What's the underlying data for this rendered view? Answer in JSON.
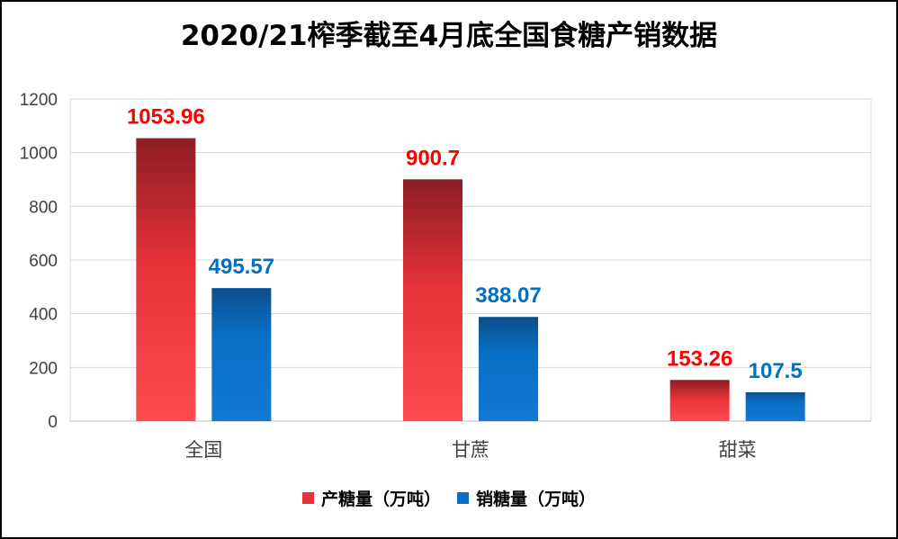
{
  "chart_data": {
    "type": "bar",
    "title": "2020/21榨季截至4月底全国食糖产销数据",
    "categories": [
      "全国",
      "甘蔗",
      "甜菜"
    ],
    "series": [
      {
        "name": "产糖量（万吨）",
        "color": "#e8323a",
        "values": [
          1053.96,
          900.7,
          153.26
        ],
        "labels": [
          "1053.96",
          "900.7",
          "153.26"
        ],
        "label_color": "#ff0000"
      },
      {
        "name": "销糖量（万吨）",
        "color": "#0a6fc4",
        "values": [
          495.57,
          388.07,
          107.5
        ],
        "labels": [
          "495.57",
          "388.07",
          "107.5"
        ],
        "label_color": "#0070c0"
      }
    ],
    "ylim": [
      0,
      1200
    ],
    "yticks": [
      "0",
      "200",
      "400",
      "600",
      "800",
      "1000",
      "1200"
    ],
    "grid": true,
    "legend": "bottom"
  }
}
